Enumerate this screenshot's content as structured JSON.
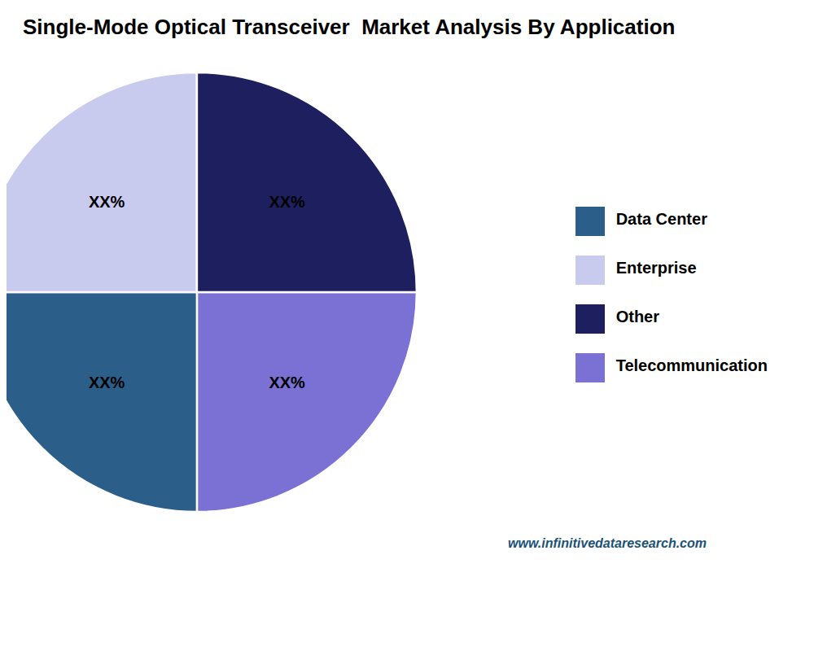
{
  "chart_data": {
    "type": "pie",
    "title": "Single-Mode Optical Transceiver  Market Analysis By Application",
    "categories": [
      "Telecommunication",
      "Data Center",
      "Enterprise",
      "Other"
    ],
    "values": [
      25,
      25,
      25,
      25
    ],
    "value_labels": [
      "XX%",
      "XX%",
      "XX%",
      "XX%"
    ],
    "colors": [
      "#7b70d4",
      "#2b5f8a",
      "#c8caee",
      "#1e1f5e"
    ],
    "data_labels": true,
    "legend": "right",
    "annotations": [
      {
        "text": "www.infinitivedataresearch.com",
        "color": "#1a5276"
      }
    ]
  }
}
